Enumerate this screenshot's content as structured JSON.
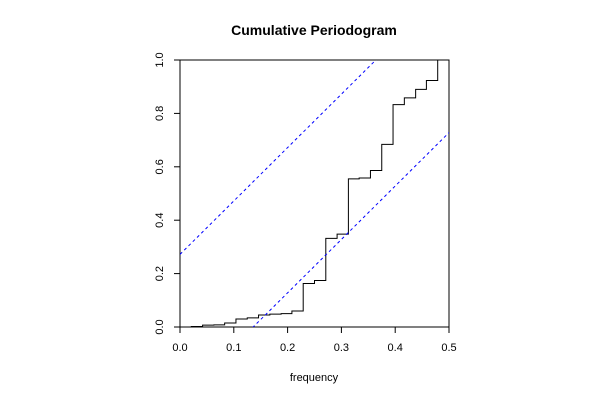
{
  "chart_data": {
    "type": "line",
    "title": "Cumulative Periodogram",
    "xlabel": "frequency",
    "ylabel": "",
    "xlim": [
      0.0,
      0.5
    ],
    "ylim": [
      0.0,
      1.0
    ],
    "x_ticks": [
      "0.0",
      "0.1",
      "0.2",
      "0.3",
      "0.4",
      "0.5"
    ],
    "y_ticks": [
      "0.0",
      "0.2",
      "0.4",
      "0.6",
      "0.8",
      "1.0"
    ],
    "grid": false,
    "series": [
      {
        "style": "step",
        "color": "#000000",
        "x": [
          0.0,
          0.021,
          0.042,
          0.063,
          0.083,
          0.104,
          0.125,
          0.146,
          0.167,
          0.188,
          0.208,
          0.229,
          0.25,
          0.271,
          0.292,
          0.313,
          0.333,
          0.354,
          0.375,
          0.396,
          0.417,
          0.438,
          0.458,
          0.479,
          0.5
        ],
        "y": [
          0.0,
          0.002,
          0.007,
          0.008,
          0.015,
          0.03,
          0.034,
          0.045,
          0.048,
          0.05,
          0.06,
          0.163,
          0.174,
          0.332,
          0.348,
          0.555,
          0.558,
          0.586,
          0.684,
          0.833,
          0.858,
          0.89,
          0.923,
          1.0,
          1.0
        ]
      },
      {
        "style": "dashed",
        "color": "#0000ff",
        "x": [
          0.0,
          0.5
        ],
        "y": [
          0.272,
          1.272
        ]
      },
      {
        "style": "dashed",
        "color": "#0000ff",
        "x": [
          0.0,
          0.5
        ],
        "y": [
          -0.272,
          0.728
        ]
      }
    ]
  }
}
